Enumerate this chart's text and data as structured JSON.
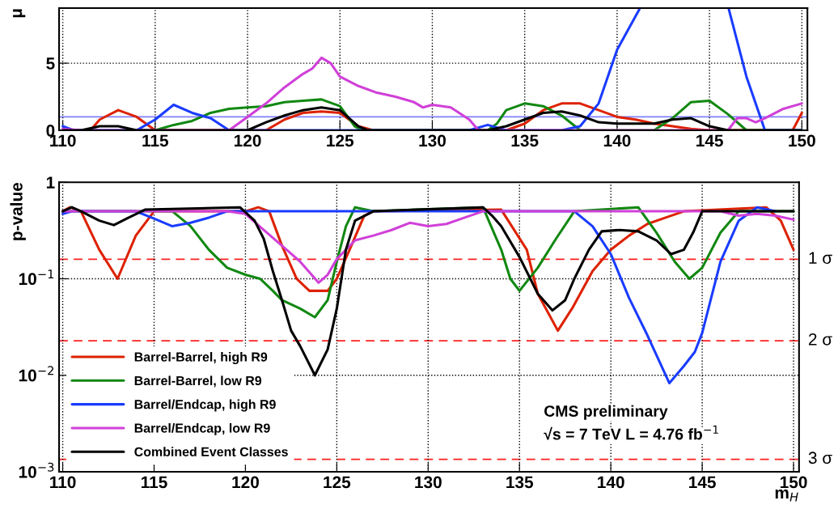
{
  "chart_data": [
    {
      "type": "line",
      "ylabel": "μ",
      "xlim": [
        109.8,
        150.3
      ],
      "ylim": [
        0,
        9.1
      ],
      "xticks": [
        110,
        115,
        120,
        125,
        130,
        135,
        140,
        145,
        150
      ],
      "yticks": [
        0,
        5
      ],
      "grid": true,
      "legend": false,
      "line_style": "solid",
      "marker": "none",
      "ref_lines": [
        {
          "axis": "y",
          "value": 1,
          "color": "#8080ff",
          "line_style": "solid"
        }
      ],
      "series": [
        {
          "color": "#dd2200",
          "x": [
            110,
            111.5,
            112,
            113,
            114,
            115,
            121,
            122,
            123,
            124,
            125,
            126,
            126.8,
            134,
            135,
            136,
            137,
            138,
            139,
            140,
            141,
            142,
            143,
            144,
            145,
            149.5,
            150
          ],
          "values": [
            0,
            0,
            0.8,
            1.5,
            1.0,
            0,
            0,
            0.8,
            1.3,
            1.4,
            1.3,
            0.3,
            0,
            0,
            0.5,
            1.5,
            2.0,
            2.0,
            1.5,
            1.0,
            0.8,
            0.5,
            0.3,
            0.1,
            0,
            0,
            1.3
          ]
        },
        {
          "color": "#118811",
          "x": [
            110,
            115,
            116,
            117,
            118,
            119,
            120,
            121,
            122,
            123,
            124,
            125,
            125.8,
            126.2,
            133,
            133.5,
            134,
            135,
            136,
            137,
            138,
            142,
            143,
            144,
            145,
            146,
            147,
            150
          ],
          "values": [
            0,
            0,
            0.4,
            0.7,
            1.3,
            1.6,
            1.7,
            1.8,
            2.1,
            2.2,
            2.3,
            1.8,
            0.3,
            0,
            0,
            0.5,
            1.5,
            2.0,
            1.8,
            1.1,
            0,
            0,
            0.9,
            2.1,
            2.2,
            1.2,
            0,
            0
          ]
        },
        {
          "color": "#1a3cff",
          "x": [
            110,
            110.5,
            111,
            114,
            115,
            116,
            117,
            118,
            119,
            132,
            133,
            134,
            137,
            138,
            139,
            140,
            141,
            141.2,
            143.5,
            146.05,
            147,
            148,
            150
          ],
          "values": [
            0.3,
            0.05,
            0,
            0,
            0.8,
            1.9,
            1.3,
            0.9,
            0,
            0,
            0.4,
            0,
            0,
            0.3,
            2.0,
            6.0,
            8.5,
            9.0,
            null,
            9.0,
            4.0,
            0,
            0
          ]
        },
        {
          "color": "#d040d8",
          "x": [
            110,
            111,
            119,
            120,
            121,
            122,
            123,
            123.5,
            124,
            124.5,
            125,
            126,
            127,
            128,
            129,
            129.5,
            130,
            131,
            132,
            132.5,
            146,
            146.5,
            147,
            147.5,
            148,
            149,
            150
          ],
          "values": [
            0.1,
            0,
            0,
            1.0,
            2.0,
            3.2,
            4.2,
            4.6,
            5.4,
            5.0,
            4.0,
            3.3,
            2.8,
            2.5,
            2.1,
            1.7,
            1.9,
            1.7,
            0.8,
            0,
            0,
            0.9,
            0.9,
            0.6,
            0.9,
            1.6,
            2.0
          ]
        },
        {
          "color": "#000000",
          "x": [
            110,
            111,
            112,
            113,
            114,
            120,
            121,
            122,
            123,
            124,
            125,
            126,
            126.5,
            133,
            134,
            135,
            136,
            137,
            138,
            139,
            140,
            142,
            143,
            144,
            145,
            146,
            150
          ],
          "values": [
            0,
            0,
            0.3,
            0.3,
            0,
            0,
            0.6,
            1.1,
            1.5,
            1.7,
            1.5,
            0.3,
            0,
            0,
            0.3,
            0.8,
            1.3,
            1.4,
            1.1,
            0.6,
            0.5,
            0.5,
            0.8,
            0.9,
            0.3,
            0,
            0
          ]
        }
      ]
    },
    {
      "type": "line",
      "ylabel": "p-value",
      "xlabel": "m$_{H}$",
      "log": "y",
      "xlim": [
        109.8,
        150.3
      ],
      "ylim": [
        0.001,
        1
      ],
      "xticks": [
        110,
        115,
        120,
        125,
        130,
        135,
        140,
        145,
        150
      ],
      "yticks": [
        {
          "value": 0.001,
          "label": "10$^{−3}$"
        },
        {
          "value": 0.01,
          "label": "10$^{−2}$"
        },
        {
          "value": 0.1,
          "label": "10$^{−1}$"
        },
        1
      ],
      "grid": true,
      "legend": "bottom left",
      "line_style": "solid",
      "marker": "none",
      "ref_lines": [
        {
          "axis": "y",
          "value": 0.159,
          "label": "1 σ",
          "color": "#ff2020",
          "line_style": "dashed"
        },
        {
          "axis": "y",
          "value": 0.0228,
          "label": "2 σ",
          "color": "#ff2020",
          "line_style": "dashed"
        },
        {
          "axis": "y",
          "value": 0.00135,
          "label": "3 σ",
          "color": "#ff2020",
          "line_style": "dashed"
        }
      ],
      "annotations": [
        "CMS preliminary",
        "√s = 7 TeV L = 4.76 fb$^{−1}$"
      ],
      "series": [
        {
          "name": "Barrel-Barrel, high R9",
          "color": "#dd2200",
          "x": [
            110,
            110.4,
            111,
            112,
            113,
            114,
            115,
            120,
            120.7,
            121.3,
            122,
            122.8,
            123.5,
            124.5,
            125,
            125.7,
            126.5,
            127,
            134,
            135.4,
            136,
            137.1,
            137.9,
            139,
            140,
            141,
            142,
            143,
            144,
            148.5,
            149.3,
            150
          ],
          "values": [
            0.5,
            0.55,
            0.5,
            0.2,
            0.1,
            0.28,
            0.5,
            0.5,
            0.55,
            0.5,
            0.22,
            0.1,
            0.075,
            0.075,
            0.1,
            0.2,
            0.45,
            0.5,
            0.52,
            0.2,
            0.07,
            0.029,
            0.05,
            0.12,
            0.2,
            0.28,
            0.37,
            0.43,
            0.5,
            0.55,
            0.4,
            0.2
          ]
        },
        {
          "name": "Barrel-Barrel, low R9",
          "color": "#118811",
          "x": [
            110,
            116,
            117,
            118,
            119,
            120,
            120.8,
            121.5,
            122,
            123,
            123.8,
            124.5,
            125,
            125.5,
            126,
            127,
            133,
            134,
            134.5,
            135,
            136,
            137,
            138,
            141.5,
            142.5,
            143.5,
            144.3,
            145,
            146,
            147,
            150
          ],
          "values": [
            0.5,
            0.5,
            0.35,
            0.2,
            0.13,
            0.11,
            0.1,
            0.075,
            0.06,
            0.049,
            0.04,
            0.06,
            0.15,
            0.35,
            0.55,
            0.5,
            0.55,
            0.2,
            0.1,
            0.075,
            0.13,
            0.26,
            0.5,
            0.55,
            0.3,
            0.15,
            0.1,
            0.13,
            0.3,
            0.5,
            0.5
          ]
        },
        {
          "name": "Barrel/Endcap, high R9",
          "color": "#1a3cff",
          "x": [
            110,
            110.5,
            114,
            115,
            116,
            117,
            118,
            119,
            138,
            139,
            140,
            141,
            142,
            143.2,
            144,
            144.6,
            145,
            146,
            147,
            148,
            149
          ],
          "values": [
            0.47,
            0.5,
            0.5,
            0.42,
            0.35,
            0.38,
            0.43,
            0.5,
            0.5,
            0.35,
            0.18,
            0.063,
            0.026,
            0.0083,
            0.0125,
            0.0175,
            0.0275,
            0.15,
            0.4,
            0.55,
            0.5
          ]
        },
        {
          "name": "Barrel/Endcap, low R9",
          "color": "#d040d8",
          "x": [
            110,
            119,
            120,
            121,
            122,
            123,
            124,
            124.5,
            125,
            126,
            127,
            128,
            129,
            130,
            131,
            132,
            133,
            146,
            147,
            148,
            149,
            150
          ],
          "values": [
            0.5,
            0.5,
            0.47,
            0.32,
            0.22,
            0.15,
            0.091,
            0.11,
            0.16,
            0.25,
            0.28,
            0.32,
            0.38,
            0.35,
            0.37,
            0.43,
            0.5,
            0.5,
            0.45,
            0.47,
            0.45,
            0.41
          ]
        },
        {
          "name": "Combined Event Classes",
          "color": "#000000",
          "x": [
            110,
            110.5,
            111,
            112,
            112.8,
            113.5,
            114.5,
            119.7,
            120.5,
            121,
            121.5,
            122,
            122.5,
            123,
            123.8,
            124.5,
            125,
            125.5,
            126,
            127,
            133,
            133.5,
            134,
            135,
            136,
            136.8,
            137.5,
            138,
            138.8,
            139.5,
            140.5,
            141.5,
            142.5,
            143.3,
            144,
            144.5,
            145,
            150
          ],
          "values": [
            0.5,
            0.55,
            0.5,
            0.4,
            0.36,
            0.42,
            0.52,
            0.55,
            0.4,
            0.26,
            0.12,
            0.06,
            0.029,
            0.02,
            0.01,
            0.0185,
            0.049,
            0.2,
            0.4,
            0.5,
            0.55,
            0.45,
            0.35,
            0.168,
            0.07,
            0.047,
            0.06,
            0.1,
            0.2,
            0.31,
            0.32,
            0.31,
            0.25,
            0.18,
            0.2,
            0.3,
            0.5,
            0.5
          ]
        }
      ]
    }
  ]
}
